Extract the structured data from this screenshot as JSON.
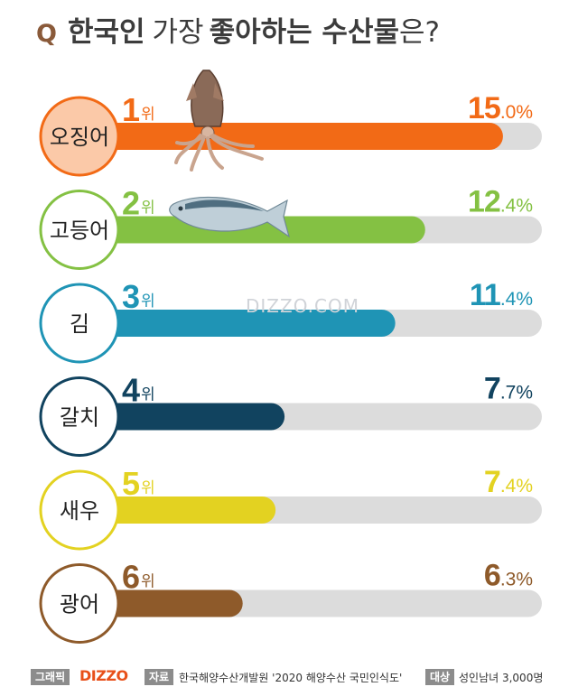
{
  "title": {
    "q": "Q",
    "part1": "한국인",
    "part2": "가장",
    "part3": "좋아하는 수산물",
    "part4": "은?"
  },
  "chart_data": {
    "type": "bar",
    "orientation": "horizontal",
    "title": "한국인 가장 좋아하는 수산물은?",
    "rank_suffix": "위",
    "value_suffix": "%",
    "xlim": [
      0,
      16.3
    ],
    "items": [
      {
        "rank": "1",
        "category": "오징어",
        "value": 15.0,
        "int": "15",
        "dec": ".0%",
        "color": "#f26a16",
        "circle_fill": "#fbc9a8",
        "icon": "squid-icon"
      },
      {
        "rank": "2",
        "category": "고등어",
        "value": 12.4,
        "int": "12",
        "dec": ".4%",
        "color": "#84c143",
        "circle_fill": "#ffffff",
        "icon": "mackerel-icon"
      },
      {
        "rank": "3",
        "category": "김",
        "value": 11.4,
        "int": "11",
        "dec": ".4%",
        "color": "#1f94b5",
        "circle_fill": "#ffffff"
      },
      {
        "rank": "4",
        "category": "갈치",
        "value": 7.7,
        "int": "7",
        "dec": ".7%",
        "color": "#11435f",
        "circle_fill": "#ffffff"
      },
      {
        "rank": "5",
        "category": "새우",
        "value": 7.4,
        "int": "7",
        "dec": ".4%",
        "color": "#e3d221",
        "circle_fill": "#ffffff"
      },
      {
        "rank": "6",
        "category": "광어",
        "value": 6.3,
        "int": "6",
        "dec": ".3%",
        "color": "#8e5a2a",
        "circle_fill": "#ffffff"
      }
    ]
  },
  "watermark": "DIZZO.COM",
  "footer": {
    "graphic_label": "그래픽",
    "brand": "DIZZO",
    "source_label": "자료",
    "source": "한국해양수산개발원 '2020 해양수산 국민인식도'",
    "target_label": "대상",
    "target": "성인남녀 3,000명"
  },
  "colors": {
    "track": "#dcdcdc",
    "title": "#3c3c3c",
    "q": "#8a5a3a"
  }
}
